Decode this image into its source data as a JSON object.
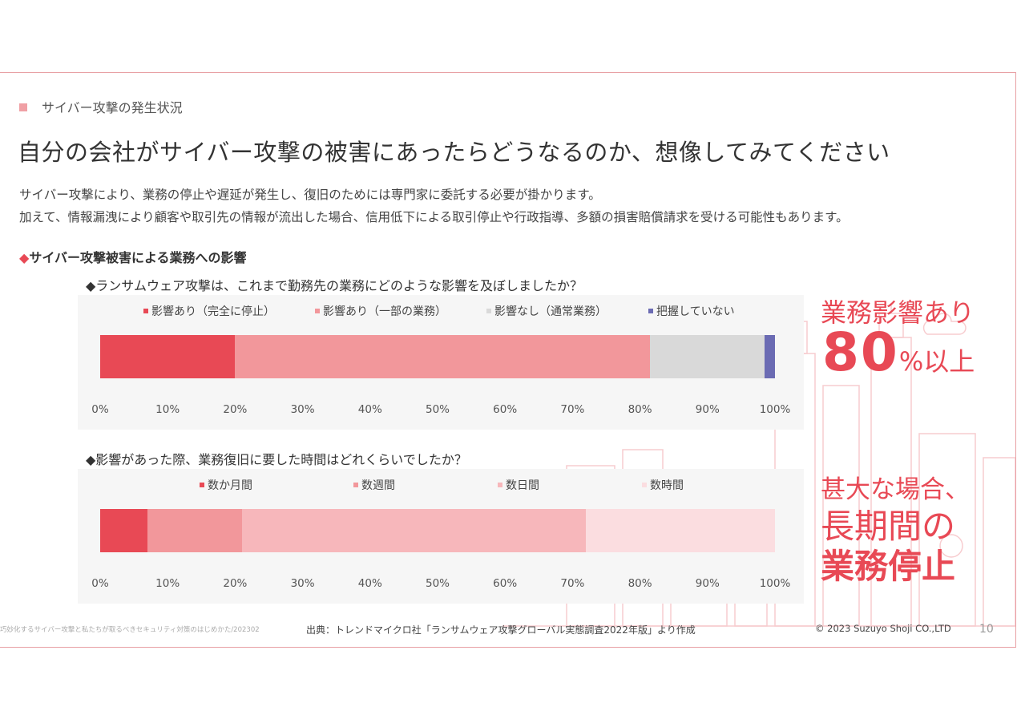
{
  "section_label": "サイバー攻撃の発生状況",
  "title": "自分の会社がサイバー攻撃の被害にあったらどうなるのか、想像してみてください",
  "lead": [
    "サイバー攻撃により、業務の停止や遅延が発生し、復旧のためには専門家に委託する必要が掛かります。",
    "加えて、情報漏洩により顧客や取引先の情報が流出した場合、信用低下による取引停止や行政指導、多額の損害賠償請求を受ける可能性もあります。"
  ],
  "subheading": "サイバー攻撃被害による業務への影響",
  "subheading_marker": "◆",
  "chart_data": [
    {
      "type": "bar",
      "orientation": "horizontal-stacked-100",
      "title": "◆ランサムウェア攻撃は、これまで勤務先の業務にどのような影響を及ぼしましたか？",
      "categories": [
        ""
      ],
      "series": [
        {
          "name": "影響あり（完全に停止）",
          "values": [
            20
          ],
          "color": "#e84955"
        },
        {
          "name": "影響あり（一部の業務）",
          "values": [
            61.5
          ],
          "color": "#f2979b"
        },
        {
          "name": "影響なし（通常業務）",
          "values": [
            17
          ],
          "color": "#d9d9d9"
        },
        {
          "name": "把握していない",
          "values": [
            1.5
          ],
          "color": "#6b6bb3"
        }
      ],
      "xticks": [
        "0%",
        "10%",
        "20%",
        "30%",
        "40%",
        "50%",
        "60%",
        "70%",
        "80%",
        "90%",
        "100%"
      ],
      "xlim": [
        0,
        100
      ],
      "legend_position": "top"
    },
    {
      "type": "bar",
      "orientation": "horizontal-stacked-100",
      "title": "◆影響があった際、業務復旧に要した時間はどれくらいでしたか？",
      "categories": [
        ""
      ],
      "series": [
        {
          "name": "数か月間",
          "values": [
            7
          ],
          "color": "#e84955"
        },
        {
          "name": "数週間",
          "values": [
            14
          ],
          "color": "#f2979b"
        },
        {
          "name": "数日間",
          "values": [
            51
          ],
          "color": "#f7b7bb"
        },
        {
          "name": "数時間",
          "values": [
            28
          ],
          "color": "#fbdde0"
        }
      ],
      "xticks": [
        "0%",
        "10%",
        "20%",
        "30%",
        "40%",
        "50%",
        "60%",
        "70%",
        "80%",
        "90%",
        "100%"
      ],
      "xlim": [
        0,
        100
      ],
      "legend_position": "top"
    }
  ],
  "callout_top": {
    "line1": "業務影響あり",
    "number": "80",
    "unit": "%以上"
  },
  "callout_bottom": {
    "line1": "甚大な場合、",
    "line2": "長期間の",
    "line3": "業務停止"
  },
  "footer": {
    "left": "巧妙化するサイバー攻撃と私たちが取るべきセキュリティ対策のはじめかた/202302",
    "source": "出典：トレンドマイクロ社「ランサムウェア攻撃グローバル実態調査2022年版」より作成",
    "copyright": "© 2023 Suzuyo Shoji CO.,LTD",
    "page": "10"
  },
  "colors": {
    "accent": "#e84955",
    "border": "#e8a0a4"
  }
}
